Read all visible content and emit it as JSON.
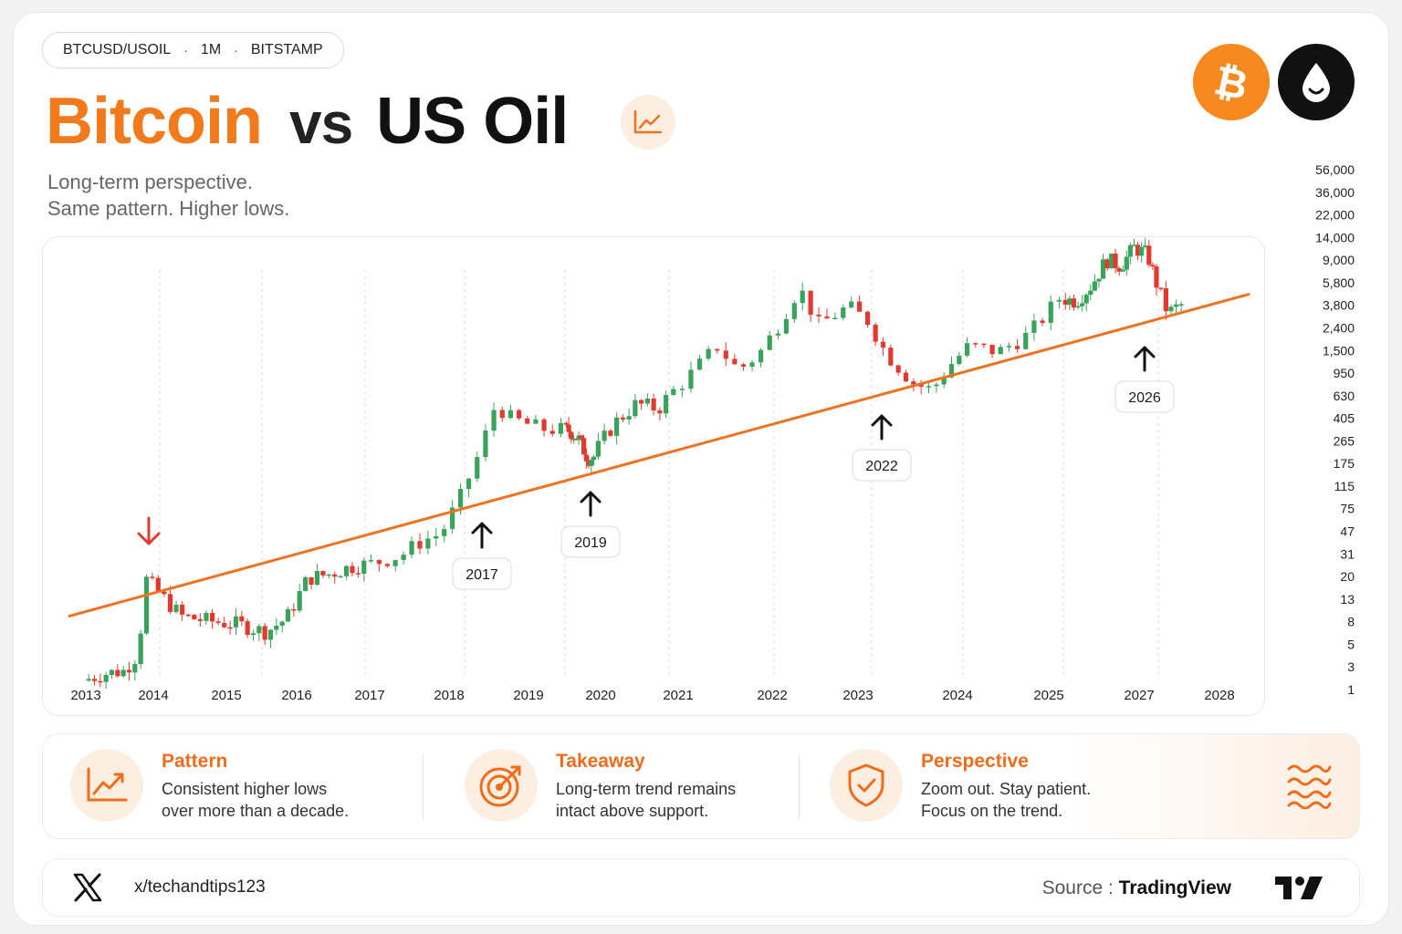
{
  "header": {
    "pill": {
      "symbol": "BTCUSD/USOIL",
      "interval": "1M",
      "exchange": "BITSTAMP",
      "separator": "·"
    },
    "title": {
      "part1": "Bitcoin",
      "part2": "vs",
      "part3": "US Oil"
    },
    "subtitle": [
      "Long-term perspective.",
      "Same pattern. Higher lows."
    ],
    "icons": [
      "trend-chart-icon",
      "bitcoin-icon",
      "oil-drop-icon"
    ]
  },
  "chart_data": {
    "type": "candlestick",
    "y_scale": "log",
    "ylim": [
      1,
      56000
    ],
    "y_ticks": [
      "56,000",
      "36,000",
      "22,000",
      "14,000",
      "9,000",
      "5,800",
      "3,800",
      "2,400",
      "1,500",
      "950",
      "630",
      "405",
      "265",
      "175",
      "115",
      "75",
      "47",
      "31",
      "20",
      "13",
      "8",
      "5",
      "3",
      "1"
    ],
    "x_ticks": [
      "2013",
      "2014",
      "2015",
      "2016",
      "2017",
      "2018",
      "2019",
      "2020",
      "2021",
      "2022",
      "2023",
      "2024",
      "2025",
      "2027",
      "2028"
    ],
    "grid": "vertical dashed",
    "trendline": {
      "from": {
        "year": 2013.0,
        "value": 5.5
      },
      "to": {
        "year": 2027.3,
        "value": 2750
      },
      "color": "#ee7320"
    },
    "annotations": [
      {
        "label": "",
        "year": 2013.85,
        "direction": "down",
        "color": "#e23a2f"
      },
      {
        "label": "2017",
        "year": 2018.3,
        "direction": "up"
      },
      {
        "label": "2019",
        "year": 2019.9,
        "direction": "up"
      },
      {
        "label": "2022",
        "year": 2023.3,
        "direction": "up"
      },
      {
        "label": "2026",
        "year": 2027.0,
        "direction": "up"
      }
    ],
    "price_path": [
      [
        2013.0,
        1.3
      ],
      [
        2013.3,
        1.5
      ],
      [
        2013.6,
        1.6
      ],
      [
        2013.8,
        2.3
      ],
      [
        2013.9,
        11
      ],
      [
        2014.1,
        8
      ],
      [
        2014.4,
        5
      ],
      [
        2014.8,
        4.5
      ],
      [
        2015.2,
        4.2
      ],
      [
        2015.6,
        3.6
      ],
      [
        2015.9,
        4.8
      ],
      [
        2016.2,
        11
      ],
      [
        2016.5,
        12
      ],
      [
        2016.8,
        14
      ],
      [
        2017.1,
        15
      ],
      [
        2017.4,
        18
      ],
      [
        2017.6,
        24
      ],
      [
        2017.8,
        28
      ],
      [
        2018.0,
        60
      ],
      [
        2018.2,
        160
      ],
      [
        2018.35,
        420
      ],
      [
        2018.5,
        310
      ],
      [
        2018.8,
        250
      ],
      [
        2019.2,
        240
      ],
      [
        2019.5,
        200
      ],
      [
        2019.8,
        135
      ],
      [
        2020.0,
        140
      ],
      [
        2020.3,
        280
      ],
      [
        2020.6,
        420
      ],
      [
        2020.9,
        380
      ],
      [
        2021.2,
        700
      ],
      [
        2021.5,
        1400
      ],
      [
        2021.7,
        850
      ],
      [
        2021.9,
        1200
      ],
      [
        2022.1,
        2300
      ],
      [
        2022.3,
        4800
      ],
      [
        2022.5,
        2200
      ],
      [
        2022.8,
        3200
      ],
      [
        2023.0,
        2400
      ],
      [
        2023.2,
        1200
      ],
      [
        2023.5,
        650
      ],
      [
        2023.7,
        560
      ],
      [
        2023.9,
        950
      ],
      [
        2024.1,
        1400
      ],
      [
        2024.4,
        1250
      ],
      [
        2024.7,
        1800
      ],
      [
        2025.0,
        3800
      ],
      [
        2025.3,
        3600
      ],
      [
        2025.6,
        5000
      ],
      [
        2025.9,
        8500
      ],
      [
        2026.2,
        7500
      ],
      [
        2026.5,
        11000
      ],
      [
        2026.8,
        9500
      ],
      [
        2027.0,
        5200
      ],
      [
        2027.2,
        2800
      ],
      [
        2027.4,
        3300
      ]
    ]
  },
  "info": [
    {
      "title": "Pattern",
      "lines": [
        "Consistent higher lows",
        "over more than a decade."
      ],
      "icon": "trend-up-icon"
    },
    {
      "title": "Takeaway",
      "lines": [
        "Long-term trend remains",
        "intact above support."
      ],
      "icon": "target-icon"
    },
    {
      "title": "Perspective",
      "lines": [
        "Zoom out. Stay patient.",
        "Focus on the trend."
      ],
      "icon": "shield-check-icon"
    }
  ],
  "footer": {
    "handle": "x/techandtips123",
    "source_label": "Source :",
    "source_name": "TradingView"
  },
  "colors": {
    "accent": "#ee7320",
    "up": "#3aa35b",
    "down": "#e23a2f"
  }
}
